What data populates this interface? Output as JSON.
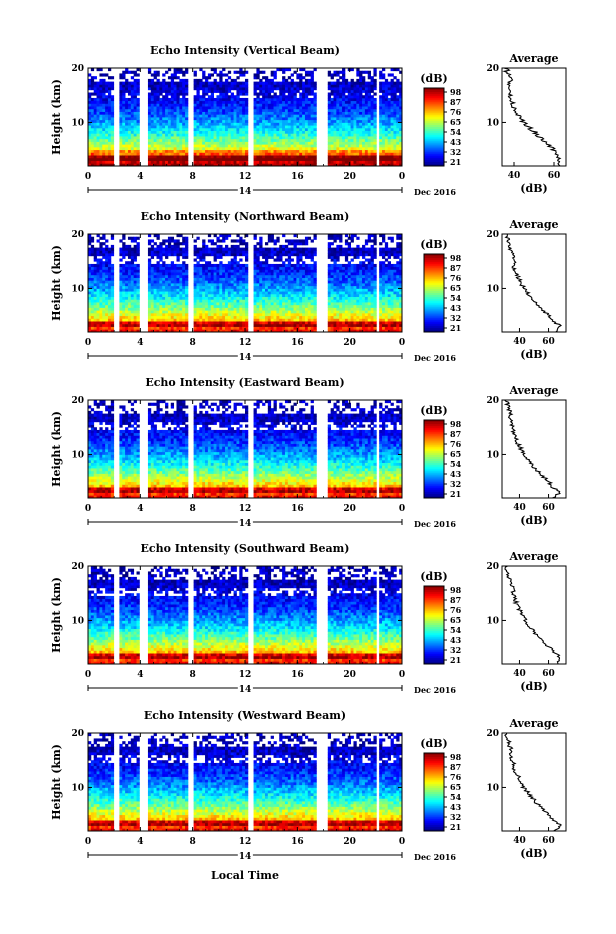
{
  "figure": {
    "ylabel": "Height (km)",
    "time_xlabel": "Local Time",
    "date_label": "14",
    "month_label": "Dec  2016",
    "colorbar_unit": "(dB)",
    "avg_title": "Average",
    "avg_xlabel": "(dB)"
  },
  "chart_data": [
    {
      "type": "heatmap",
      "title": "Echo Intensity (Vertical Beam)",
      "ylabel": "Height (km)",
      "x_ticks": [
        "0",
        "4",
        "8",
        "12",
        "16",
        "20",
        "0"
      ],
      "y_ticks": [
        "10",
        "20"
      ],
      "xlim": [
        0,
        24
      ],
      "ylim": [
        2,
        20
      ],
      "colorbar_ticks": [
        "98",
        "87",
        "76",
        "65",
        "54",
        "43",
        "32",
        "21"
      ],
      "colorbar_range": [
        21,
        98
      ],
      "gaps": [
        [
          2.0,
          2.4
        ],
        [
          4.0,
          4.5
        ],
        [
          7.7,
          8.0
        ],
        [
          12.2,
          12.6
        ],
        [
          17.5,
          18.4
        ],
        [
          22.0,
          22.3
        ]
      ],
      "avg_profile": {
        "xticks": [
          "40",
          "60"
        ],
        "xlim": [
          34,
          66
        ],
        "height_km": [
          2,
          3,
          4,
          5,
          6,
          7,
          8,
          9,
          10,
          11,
          12,
          13,
          14,
          15,
          16,
          17,
          18,
          19,
          20
        ],
        "db": [
          62,
          63,
          61,
          60,
          57,
          54,
          51,
          48,
          45,
          43,
          41,
          40,
          39,
          38,
          38,
          37,
          38,
          37,
          36
        ]
      }
    },
    {
      "type": "heatmap",
      "title": "Echo Intensity (Northward Beam)",
      "ylabel": "Height (km)",
      "x_ticks": [
        "0",
        "4",
        "8",
        "12",
        "16",
        "20",
        "0"
      ],
      "y_ticks": [
        "10",
        "20"
      ],
      "xlim": [
        0,
        24
      ],
      "ylim": [
        2,
        20
      ],
      "colorbar_ticks": [
        "98",
        "87",
        "76",
        "65",
        "54",
        "43",
        "32",
        "21"
      ],
      "colorbar_range": [
        21,
        98
      ],
      "gaps": [
        [
          2.0,
          2.4
        ],
        [
          4.0,
          4.5
        ],
        [
          7.7,
          8.0
        ],
        [
          12.2,
          12.6
        ],
        [
          17.5,
          18.4
        ],
        [
          22.0,
          22.3
        ]
      ],
      "avg_profile": {
        "xticks": [
          "40",
          "60"
        ],
        "xlim": [
          28,
          72
        ],
        "height_km": [
          2,
          3,
          4,
          5,
          6,
          7,
          8,
          9,
          10,
          11,
          12,
          13,
          14,
          15,
          16,
          17,
          18,
          19,
          20
        ],
        "db": [
          66,
          68,
          64,
          60,
          56,
          52,
          49,
          46,
          43,
          41,
          39,
          37,
          36,
          36,
          35,
          34,
          33,
          32,
          31
        ]
      }
    },
    {
      "type": "heatmap",
      "title": "Echo Intensity (Eastward Beam)",
      "ylabel": "Height (km)",
      "x_ticks": [
        "0",
        "4",
        "8",
        "12",
        "16",
        "20",
        "0"
      ],
      "y_ticks": [
        "10",
        "20"
      ],
      "xlim": [
        0,
        24
      ],
      "ylim": [
        2,
        20
      ],
      "colorbar_ticks": [
        "98",
        "87",
        "76",
        "65",
        "54",
        "43",
        "32",
        "21"
      ],
      "colorbar_range": [
        21,
        98
      ],
      "gaps": [
        [
          2.0,
          2.4
        ],
        [
          4.0,
          4.5
        ],
        [
          7.7,
          8.0
        ],
        [
          12.2,
          12.6
        ],
        [
          17.5,
          18.4
        ],
        [
          22.0,
          22.3
        ]
      ],
      "avg_profile": {
        "xticks": [
          "40",
          "60"
        ],
        "xlim": [
          28,
          72
        ],
        "height_km": [
          2,
          3,
          4,
          5,
          6,
          7,
          8,
          9,
          10,
          11,
          12,
          13,
          14,
          15,
          16,
          17,
          18,
          19,
          20
        ],
        "db": [
          64,
          67,
          63,
          60,
          56,
          52,
          49,
          46,
          43,
          41,
          39,
          37,
          36,
          35,
          34,
          34,
          33,
          32,
          31
        ]
      }
    },
    {
      "type": "heatmap",
      "title": "Echo Intensity (Southward Beam)",
      "ylabel": "Height (km)",
      "x_ticks": [
        "0",
        "4",
        "8",
        "12",
        "16",
        "20",
        "0"
      ],
      "y_ticks": [
        "10",
        "20"
      ],
      "xlim": [
        0,
        24
      ],
      "ylim": [
        2,
        20
      ],
      "colorbar_ticks": [
        "98",
        "87",
        "76",
        "65",
        "54",
        "43",
        "32",
        "21"
      ],
      "colorbar_range": [
        21,
        98
      ],
      "gaps": [
        [
          2.0,
          2.4
        ],
        [
          4.0,
          4.5
        ],
        [
          7.7,
          8.0
        ],
        [
          12.2,
          12.6
        ],
        [
          17.5,
          18.4
        ],
        [
          22.0,
          22.3
        ]
      ],
      "avg_profile": {
        "xticks": [
          "40",
          "60"
        ],
        "xlim": [
          28,
          72
        ],
        "height_km": [
          2,
          3,
          4,
          5,
          6,
          7,
          8,
          9,
          10,
          11,
          12,
          13,
          14,
          15,
          16,
          17,
          18,
          19,
          20
        ],
        "db": [
          66,
          69,
          65,
          61,
          57,
          53,
          50,
          47,
          44,
          42,
          40,
          38,
          37,
          36,
          35,
          34,
          33,
          32,
          31
        ]
      }
    },
    {
      "type": "heatmap",
      "title": "Echo Intensity (Westward Beam)",
      "ylabel": "Height (km)",
      "x_ticks": [
        "0",
        "4",
        "8",
        "12",
        "16",
        "20",
        "0"
      ],
      "y_ticks": [
        "10",
        "20"
      ],
      "xlim": [
        0,
        24
      ],
      "ylim": [
        2,
        20
      ],
      "colorbar_ticks": [
        "98",
        "87",
        "76",
        "65",
        "54",
        "43",
        "32",
        "21"
      ],
      "colorbar_range": [
        21,
        98
      ],
      "gaps": [
        [
          2.0,
          2.4
        ],
        [
          4.0,
          4.5
        ],
        [
          7.7,
          8.0
        ],
        [
          12.2,
          12.6
        ],
        [
          17.5,
          18.4
        ],
        [
          22.0,
          22.3
        ]
      ],
      "avg_profile": {
        "xticks": [
          "40",
          "60"
        ],
        "xlim": [
          28,
          72
        ],
        "height_km": [
          2,
          3,
          4,
          5,
          6,
          7,
          8,
          9,
          10,
          11,
          12,
          13,
          14,
          15,
          16,
          17,
          18,
          19,
          20
        ],
        "db": [
          65,
          68,
          64,
          60,
          56,
          52,
          49,
          46,
          43,
          41,
          39,
          37,
          36,
          35,
          34,
          34,
          33,
          32,
          31
        ]
      }
    }
  ]
}
